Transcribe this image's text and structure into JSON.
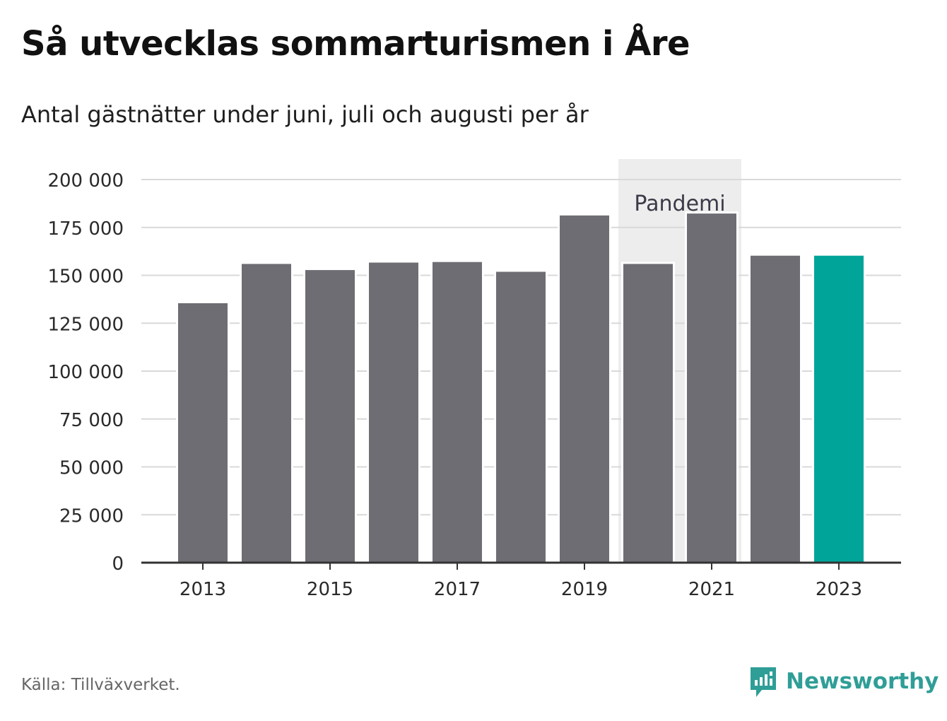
{
  "header": {
    "title": "Så utvecklas sommarturismen i Åre",
    "subtitle": "Antal gästnätter under juni, juli och augusti per år"
  },
  "footer": {
    "source": "Källa: Tillväxverket.",
    "brand": "Newsworthy",
    "logo_icon": "newsworthy-logo-icon"
  },
  "colors": {
    "bar": "#6e6d73",
    "highlight": "#00a499",
    "pandemic_band": "#ededed",
    "grid": "#d9d9d9",
    "brand": "#2f9e97"
  },
  "chart_data": {
    "type": "bar",
    "categories": [
      "2013",
      "2014",
      "2015",
      "2016",
      "2017",
      "2018",
      "2019",
      "2020",
      "2021",
      "2022",
      "2023"
    ],
    "values": [
      136000,
      156500,
      153300,
      157200,
      157500,
      152400,
      181800,
      156500,
      182800,
      160800,
      160800
    ],
    "highlight_category": "2023",
    "x_tick_labels": [
      "2013",
      "2015",
      "2017",
      "2019",
      "2021",
      "2023"
    ],
    "y_ticks": [
      0,
      25000,
      50000,
      75000,
      100000,
      125000,
      150000,
      175000,
      200000
    ],
    "y_tick_labels": [
      "0",
      "25 000",
      "50 000",
      "75 000",
      "100 000",
      "125 000",
      "150 000",
      "175 000",
      "200 000"
    ],
    "ylim": [
      0,
      200000
    ],
    "xlabel": "",
    "ylabel": "",
    "grid": true,
    "annotation": {
      "label": "Pandemi",
      "from": "2020",
      "to": "2021"
    }
  }
}
